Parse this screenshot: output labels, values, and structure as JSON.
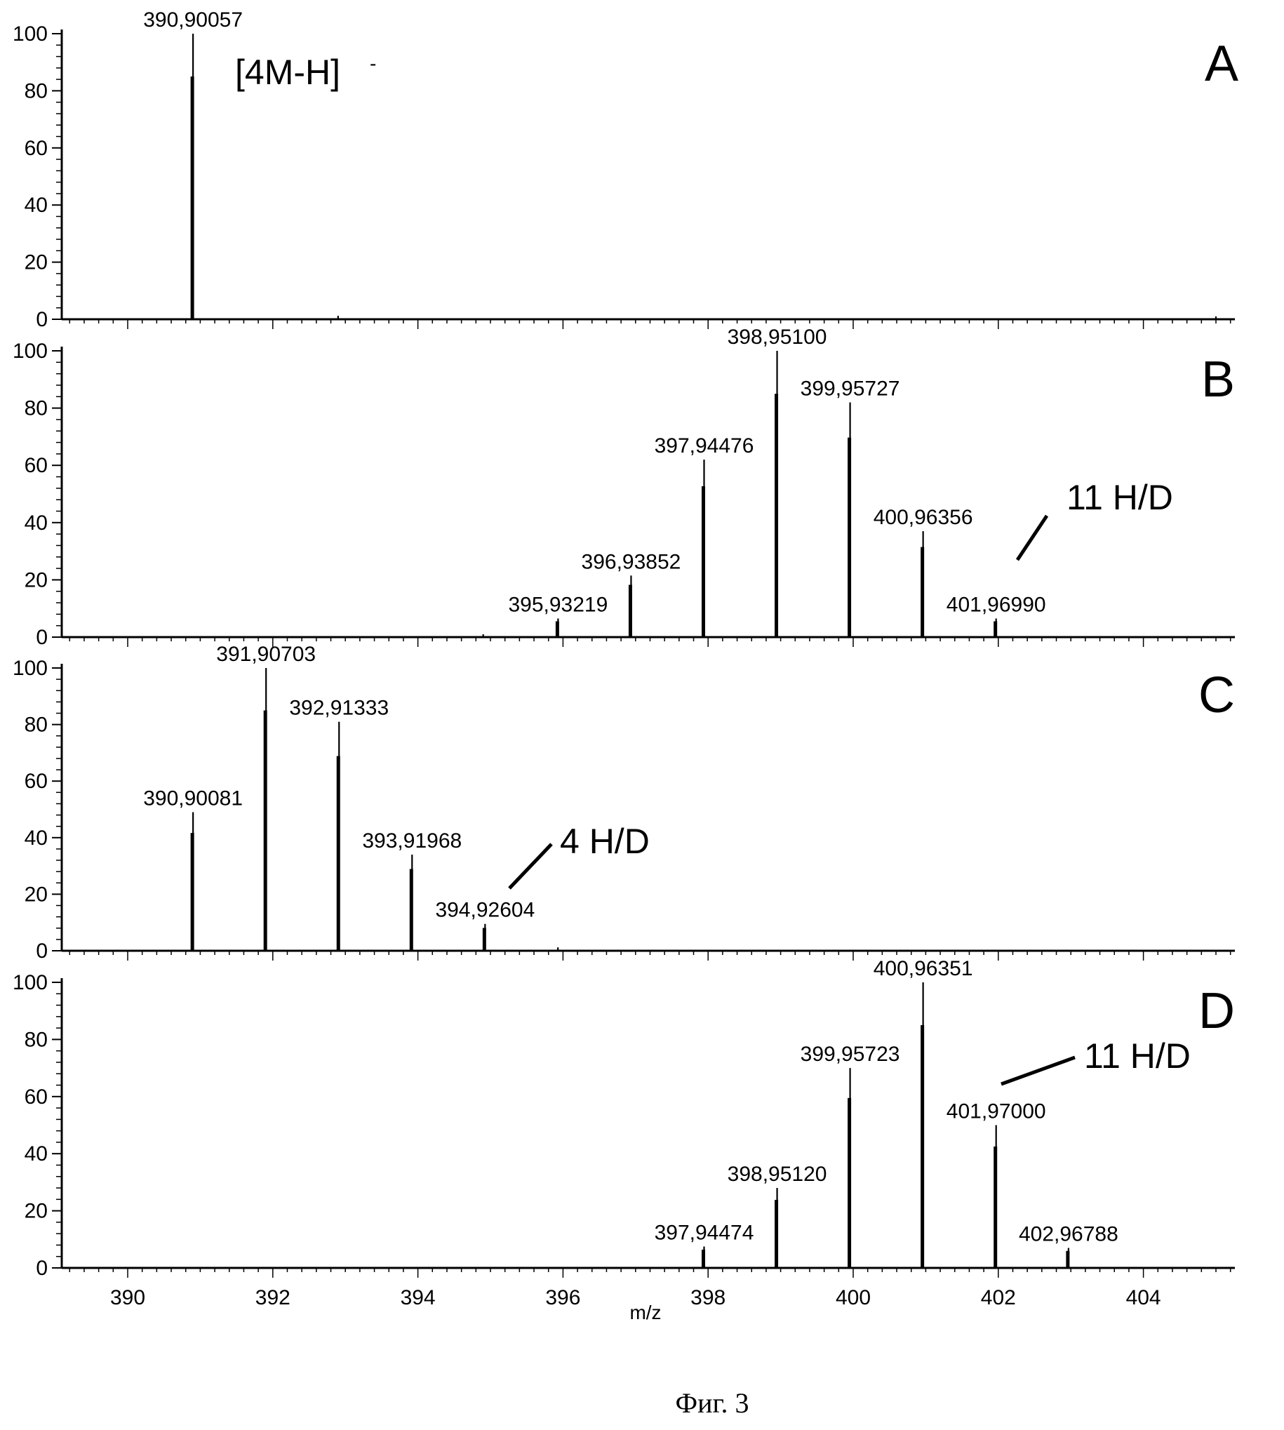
{
  "caption": "Фиг. 3",
  "chart_data": {
    "type": "bar",
    "xlabel": "m/z",
    "xlim": [
      389.1,
      405.3
    ],
    "x_ticks": [
      390,
      392,
      394,
      396,
      398,
      400,
      402,
      404
    ],
    "ylim": [
      0,
      100
    ],
    "y_ticks": [
      0,
      20,
      40,
      60,
      80,
      100
    ],
    "panels": [
      {
        "letter": "A",
        "peaks": [
          {
            "x": 390.90057,
            "y": 100,
            "label": "390,90057"
          },
          {
            "x": 392.9,
            "y": 1.2,
            "label": ""
          },
          {
            "x": 405.0,
            "y": 1.0,
            "label": ""
          }
        ],
        "annotations": [
          {
            "text": "[4M-H]",
            "sup": "-"
          }
        ]
      },
      {
        "letter": "B",
        "peaks": [
          {
            "x": 394.9,
            "y": 1.0,
            "label": ""
          },
          {
            "x": 395.93219,
            "y": 6.5,
            "label": "395,93219"
          },
          {
            "x": 396.93852,
            "y": 21.5,
            "label": "396,93852"
          },
          {
            "x": 397.94476,
            "y": 62,
            "label": "397,94476"
          },
          {
            "x": 398.951,
            "y": 100,
            "label": "398,95100"
          },
          {
            "x": 399.95727,
            "y": 82,
            "label": "399,95727"
          },
          {
            "x": 400.96356,
            "y": 37,
            "label": "400,96356"
          },
          {
            "x": 401.9699,
            "y": 6.5,
            "label": "401,96990"
          }
        ],
        "annotations": [
          {
            "text": "11 H/D"
          }
        ]
      },
      {
        "letter": "C",
        "peaks": [
          {
            "x": 390.90081,
            "y": 49,
            "label": "390,90081"
          },
          {
            "x": 391.90703,
            "y": 100,
            "label": "391,90703"
          },
          {
            "x": 392.91333,
            "y": 81,
            "label": "392,91333"
          },
          {
            "x": 393.91968,
            "y": 34,
            "label": "393,91968"
          },
          {
            "x": 394.92604,
            "y": 9.5,
            "label": "394,92604"
          },
          {
            "x": 395.93,
            "y": 1.2,
            "label": ""
          }
        ],
        "annotations": [
          {
            "text": "4 H/D"
          }
        ]
      },
      {
        "letter": "D",
        "peaks": [
          {
            "x": 397.94474,
            "y": 7.5,
            "label": "397,94474"
          },
          {
            "x": 398.9512,
            "y": 28,
            "label": "398,95120"
          },
          {
            "x": 399.95723,
            "y": 70,
            "label": "399,95723"
          },
          {
            "x": 400.96351,
            "y": 100,
            "label": "400,96351"
          },
          {
            "x": 401.97,
            "y": 50,
            "label": "401,97000"
          },
          {
            "x": 402.96788,
            "y": 7,
            "label": "402,96788"
          }
        ],
        "annotations": [
          {
            "text": "11 H/D"
          }
        ]
      }
    ]
  }
}
